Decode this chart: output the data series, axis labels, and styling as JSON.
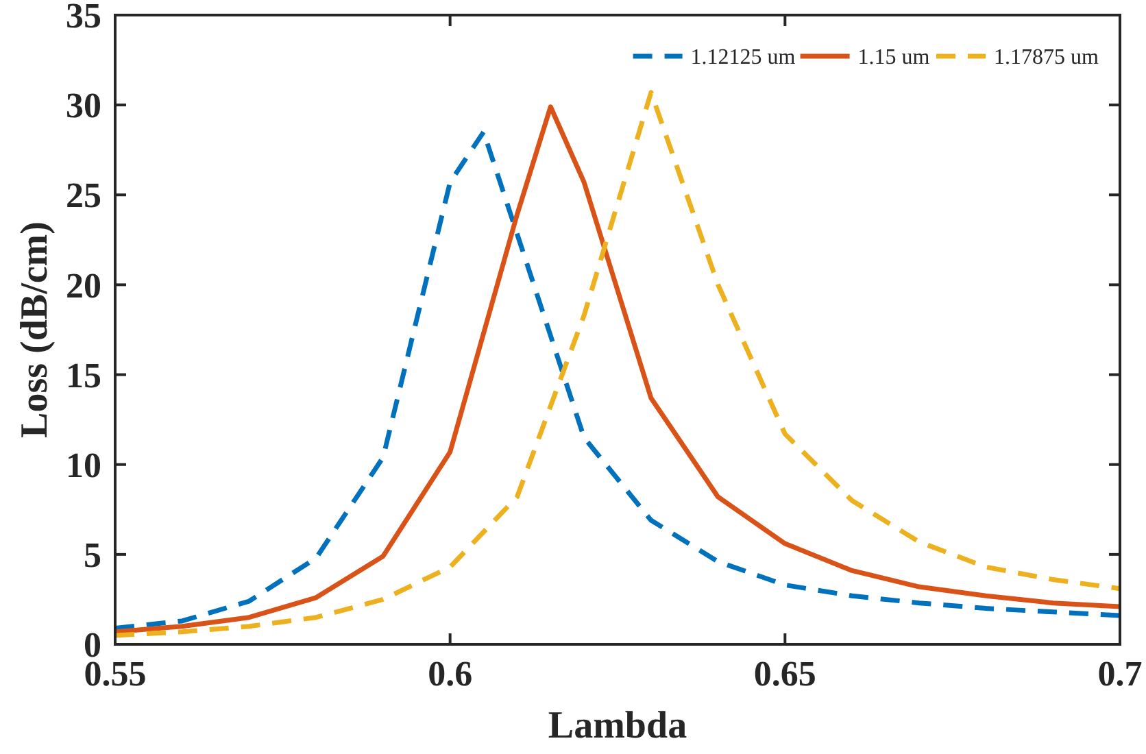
{
  "chart_data": {
    "type": "line",
    "xlabel": "Lambda",
    "ylabel": "Loss (dB/cm)",
    "xlim": [
      0.55,
      0.7
    ],
    "ylim": [
      0,
      35
    ],
    "xticks": [
      0.55,
      0.6,
      0.65,
      0.7
    ],
    "yticks": [
      0,
      5,
      10,
      15,
      20,
      25,
      30,
      35
    ],
    "legend": "top right",
    "grid": false,
    "series": [
      {
        "name": "1.12125 um",
        "color": "#0072bd",
        "line_style": "dashed",
        "x": [
          0.55,
          0.56,
          0.57,
          0.58,
          0.59,
          0.6,
          0.605,
          0.62,
          0.63,
          0.64,
          0.65,
          0.66,
          0.67,
          0.68,
          0.69,
          0.7
        ],
        "values": [
          0.9,
          1.3,
          2.4,
          4.8,
          10.4,
          25.7,
          28.5,
          11.5,
          6.9,
          4.6,
          3.3,
          2.7,
          2.3,
          2.0,
          1.8,
          1.6
        ]
      },
      {
        "name": "1.15 um",
        "color": "#d95319",
        "line_style": "solid",
        "x": [
          0.55,
          0.56,
          0.57,
          0.58,
          0.59,
          0.6,
          0.61,
          0.615,
          0.62,
          0.63,
          0.64,
          0.65,
          0.66,
          0.67,
          0.68,
          0.69,
          0.7
        ],
        "values": [
          0.7,
          1.0,
          1.5,
          2.6,
          4.9,
          10.7,
          23.9,
          29.9,
          25.7,
          13.7,
          8.2,
          5.6,
          4.1,
          3.2,
          2.7,
          2.3,
          2.1
        ]
      },
      {
        "name": "1.17875 um",
        "color": "#edb120",
        "line_style": "dashed",
        "x": [
          0.55,
          0.56,
          0.57,
          0.58,
          0.59,
          0.6,
          0.61,
          0.62,
          0.63,
          0.64,
          0.65,
          0.66,
          0.67,
          0.68,
          0.69,
          0.7
        ],
        "values": [
          0.5,
          0.7,
          1.0,
          1.5,
          2.5,
          4.3,
          8.2,
          18.3,
          30.7,
          20.0,
          11.7,
          8.0,
          5.7,
          4.3,
          3.6,
          3.1
        ]
      }
    ]
  }
}
